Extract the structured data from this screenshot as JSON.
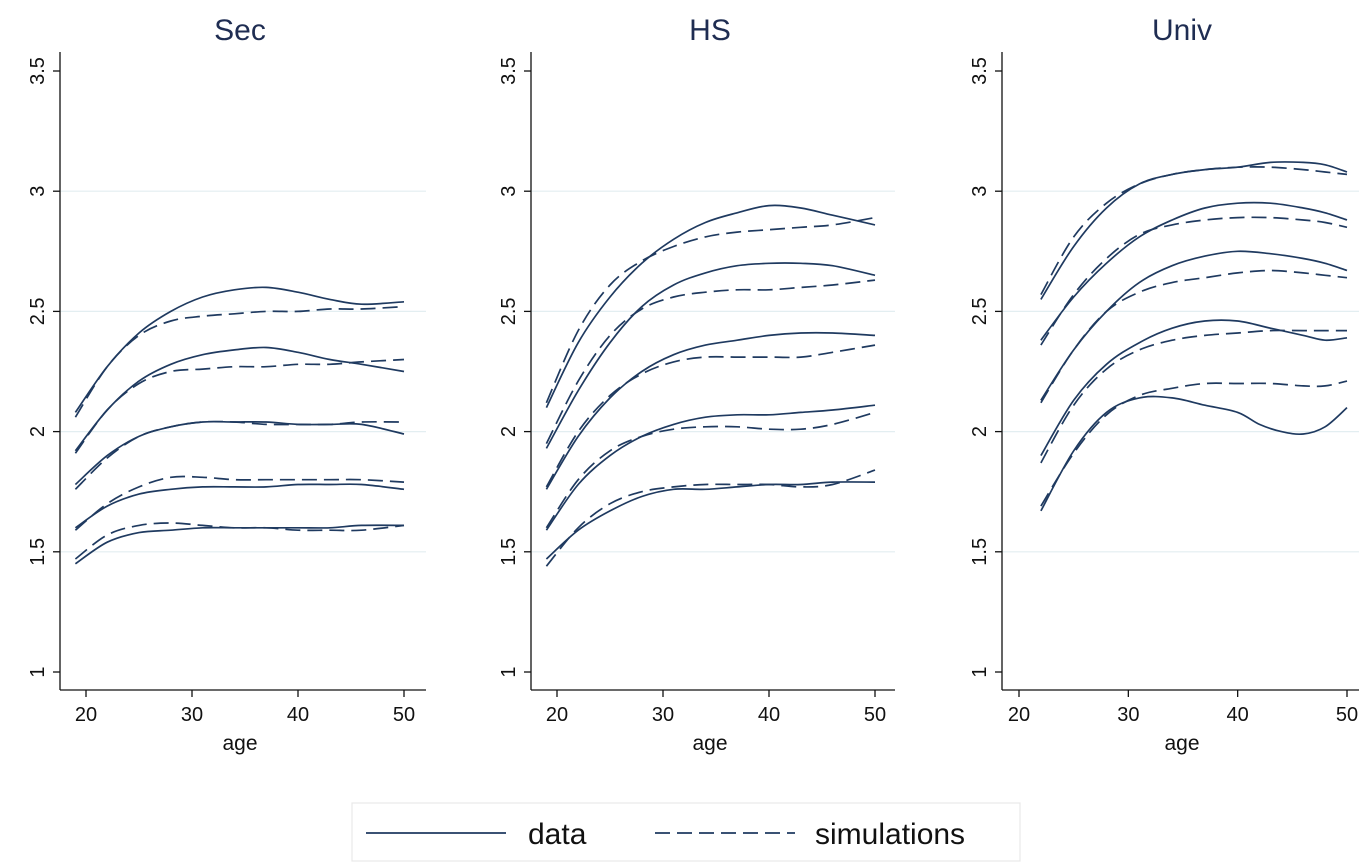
{
  "chart_data": [
    {
      "type": "line",
      "title": "Sec",
      "xlabel": "age",
      "ylabel": "",
      "xlim": [
        17,
        51
      ],
      "ylim": [
        1,
        3.5
      ],
      "xticks": [
        20,
        30,
        40,
        50
      ],
      "yticks": [
        1,
        1.5,
        2,
        2.5,
        3,
        3.5
      ],
      "xtick_labels": [
        "20",
        "30",
        "40",
        "50"
      ],
      "ytick_labels": [
        "1",
        "1.5",
        "2",
        "2.5",
        "3",
        "3.5"
      ],
      "grid": true,
      "series": [
        {
          "group": "data",
          "style": "solid",
          "x": [
            19,
            22,
            25,
            28,
            31,
            34,
            37,
            40,
            43,
            46,
            50
          ],
          "y": [
            2.08,
            2.27,
            2.41,
            2.5,
            2.56,
            2.59,
            2.6,
            2.58,
            2.55,
            2.53,
            2.54
          ]
        },
        {
          "group": "simulations",
          "style": "dashed",
          "x": [
            19,
            22,
            25,
            28,
            31,
            34,
            37,
            40,
            43,
            46,
            50
          ],
          "y": [
            2.06,
            2.27,
            2.4,
            2.46,
            2.48,
            2.49,
            2.5,
            2.5,
            2.51,
            2.51,
            2.52
          ]
        },
        {
          "group": "data",
          "style": "solid",
          "x": [
            19,
            22,
            25,
            28,
            31,
            34,
            37,
            40,
            43,
            46,
            50
          ],
          "y": [
            1.92,
            2.09,
            2.21,
            2.28,
            2.32,
            2.34,
            2.35,
            2.33,
            2.3,
            2.28,
            2.25
          ]
        },
        {
          "group": "simulations",
          "style": "dashed",
          "x": [
            19,
            22,
            25,
            28,
            31,
            34,
            37,
            40,
            43,
            46,
            50
          ],
          "y": [
            1.91,
            2.09,
            2.2,
            2.25,
            2.26,
            2.27,
            2.27,
            2.28,
            2.28,
            2.29,
            2.3
          ]
        },
        {
          "group": "data",
          "style": "solid",
          "x": [
            19,
            22,
            25,
            28,
            31,
            34,
            37,
            40,
            43,
            46,
            50
          ],
          "y": [
            1.78,
            1.9,
            1.98,
            2.02,
            2.04,
            2.04,
            2.04,
            2.03,
            2.03,
            2.03,
            1.99
          ]
        },
        {
          "group": "simulations",
          "style": "dashed",
          "x": [
            19,
            22,
            25,
            28,
            31,
            34,
            37,
            40,
            43,
            46,
            50
          ],
          "y": [
            1.76,
            1.89,
            1.98,
            2.02,
            2.04,
            2.04,
            2.03,
            2.03,
            2.03,
            2.04,
            2.04
          ]
        },
        {
          "group": "data",
          "style": "solid",
          "x": [
            19,
            22,
            25,
            28,
            31,
            34,
            37,
            40,
            43,
            46,
            50
          ],
          "y": [
            1.6,
            1.69,
            1.74,
            1.76,
            1.77,
            1.77,
            1.77,
            1.78,
            1.78,
            1.78,
            1.76
          ]
        },
        {
          "group": "simulations",
          "style": "dashed",
          "x": [
            19,
            22,
            25,
            28,
            31,
            34,
            37,
            40,
            43,
            46,
            50
          ],
          "y": [
            1.59,
            1.7,
            1.77,
            1.81,
            1.81,
            1.8,
            1.8,
            1.8,
            1.8,
            1.8,
            1.79
          ]
        },
        {
          "group": "data",
          "style": "solid",
          "x": [
            19,
            22,
            25,
            28,
            31,
            34,
            37,
            40,
            43,
            46,
            50
          ],
          "y": [
            1.45,
            1.54,
            1.58,
            1.59,
            1.6,
            1.6,
            1.6,
            1.6,
            1.6,
            1.61,
            1.61
          ]
        },
        {
          "group": "simulations",
          "style": "dashed",
          "x": [
            19,
            22,
            25,
            28,
            31,
            34,
            37,
            40,
            43,
            46,
            50
          ],
          "y": [
            1.47,
            1.57,
            1.61,
            1.62,
            1.61,
            1.6,
            1.6,
            1.59,
            1.59,
            1.59,
            1.61
          ]
        }
      ]
    },
    {
      "type": "line",
      "title": "HS",
      "xlabel": "age",
      "ylabel": "",
      "xlim": [
        17,
        51
      ],
      "ylim": [
        1,
        3.5
      ],
      "xticks": [
        20,
        30,
        40,
        50
      ],
      "yticks": [
        1,
        1.5,
        2,
        2.5,
        3,
        3.5
      ],
      "xtick_labels": [
        "20",
        "30",
        "40",
        "50"
      ],
      "ytick_labels": [
        "1",
        "1.5",
        "2",
        "2.5",
        "3",
        "3.5"
      ],
      "grid": true,
      "series": [
        {
          "group": "data",
          "style": "solid",
          "x": [
            19,
            22,
            25,
            28,
            31,
            34,
            37,
            40,
            43,
            46,
            50
          ],
          "y": [
            2.1,
            2.37,
            2.56,
            2.7,
            2.8,
            2.87,
            2.91,
            2.94,
            2.93,
            2.9,
            2.86
          ]
        },
        {
          "group": "simulations",
          "style": "dashed",
          "x": [
            19,
            22,
            25,
            28,
            31,
            34,
            37,
            40,
            43,
            46,
            50
          ],
          "y": [
            2.12,
            2.42,
            2.61,
            2.71,
            2.77,
            2.81,
            2.83,
            2.84,
            2.85,
            2.86,
            2.89
          ]
        },
        {
          "group": "data",
          "style": "solid",
          "x": [
            19,
            22,
            25,
            28,
            31,
            34,
            37,
            40,
            43,
            46,
            50
          ],
          "y": [
            1.93,
            2.17,
            2.37,
            2.52,
            2.61,
            2.66,
            2.69,
            2.7,
            2.7,
            2.69,
            2.65
          ]
        },
        {
          "group": "simulations",
          "style": "dashed",
          "x": [
            19,
            22,
            25,
            28,
            31,
            34,
            37,
            40,
            43,
            46,
            50
          ],
          "y": [
            1.95,
            2.21,
            2.4,
            2.51,
            2.56,
            2.58,
            2.59,
            2.59,
            2.6,
            2.61,
            2.63
          ]
        },
        {
          "group": "data",
          "style": "solid",
          "x": [
            19,
            22,
            25,
            28,
            31,
            34,
            37,
            40,
            43,
            46,
            50
          ],
          "y": [
            1.76,
            1.98,
            2.14,
            2.25,
            2.32,
            2.36,
            2.38,
            2.4,
            2.41,
            2.41,
            2.4
          ]
        },
        {
          "group": "simulations",
          "style": "dashed",
          "x": [
            19,
            22,
            25,
            28,
            31,
            34,
            37,
            40,
            43,
            46,
            50
          ],
          "y": [
            1.77,
            2.0,
            2.15,
            2.24,
            2.29,
            2.31,
            2.31,
            2.31,
            2.31,
            2.33,
            2.36
          ]
        },
        {
          "group": "data",
          "style": "solid",
          "x": [
            19,
            22,
            25,
            28,
            31,
            34,
            37,
            40,
            43,
            46,
            50
          ],
          "y": [
            1.59,
            1.78,
            1.9,
            1.98,
            2.03,
            2.06,
            2.07,
            2.07,
            2.08,
            2.09,
            2.11
          ]
        },
        {
          "group": "simulations",
          "style": "dashed",
          "x": [
            19,
            22,
            25,
            28,
            31,
            34,
            37,
            40,
            43,
            46,
            50
          ],
          "y": [
            1.6,
            1.8,
            1.92,
            1.98,
            2.01,
            2.02,
            2.02,
            2.01,
            2.01,
            2.03,
            2.08
          ]
        },
        {
          "group": "data",
          "style": "solid",
          "x": [
            19,
            22,
            25,
            28,
            31,
            34,
            37,
            40,
            43,
            46,
            50
          ],
          "y": [
            1.47,
            1.59,
            1.67,
            1.73,
            1.76,
            1.76,
            1.77,
            1.78,
            1.78,
            1.79,
            1.79
          ]
        },
        {
          "group": "simulations",
          "style": "dashed",
          "x": [
            19,
            22,
            25,
            28,
            31,
            34,
            37,
            40,
            43,
            46,
            50
          ],
          "y": [
            1.44,
            1.6,
            1.7,
            1.75,
            1.77,
            1.78,
            1.78,
            1.78,
            1.77,
            1.78,
            1.84
          ]
        }
      ]
    },
    {
      "type": "line",
      "title": "Univ",
      "xlabel": "age",
      "ylabel": "",
      "xlim": [
        18.5,
        50
      ],
      "ylim": [
        1,
        3.5
      ],
      "xticks": [
        20,
        30,
        40,
        50
      ],
      "yticks": [
        1,
        1.5,
        2,
        2.5,
        3,
        3.5
      ],
      "xtick_labels": [
        "20",
        "30",
        "40",
        "50"
      ],
      "ytick_labels": [
        "1",
        "1.5",
        "2",
        "2.5",
        "3",
        "3.5"
      ],
      "grid": true,
      "series": [
        {
          "group": "data",
          "style": "solid",
          "x": [
            22,
            25,
            28,
            31,
            34,
            37,
            40,
            43,
            46,
            48,
            50
          ],
          "y": [
            2.55,
            2.77,
            2.93,
            3.03,
            3.07,
            3.09,
            3.1,
            3.12,
            3.12,
            3.11,
            3.08
          ]
        },
        {
          "group": "simulations",
          "style": "dashed",
          "x": [
            22,
            25,
            28,
            31,
            34,
            37,
            40,
            43,
            46,
            48,
            50
          ],
          "y": [
            2.57,
            2.81,
            2.95,
            3.03,
            3.07,
            3.09,
            3.1,
            3.1,
            3.09,
            3.08,
            3.07
          ]
        },
        {
          "group": "data",
          "style": "solid",
          "x": [
            22,
            25,
            28,
            31,
            34,
            37,
            40,
            43,
            46,
            48,
            50
          ],
          "y": [
            2.38,
            2.56,
            2.7,
            2.81,
            2.88,
            2.93,
            2.95,
            2.95,
            2.93,
            2.91,
            2.88
          ]
        },
        {
          "group": "simulations",
          "style": "dashed",
          "x": [
            22,
            25,
            28,
            31,
            34,
            37,
            40,
            43,
            46,
            48,
            50
          ],
          "y": [
            2.36,
            2.57,
            2.72,
            2.82,
            2.86,
            2.88,
            2.89,
            2.89,
            2.88,
            2.87,
            2.85
          ]
        },
        {
          "group": "data",
          "style": "solid",
          "x": [
            22,
            25,
            28,
            31,
            34,
            37,
            40,
            43,
            46,
            48,
            50
          ],
          "y": [
            2.13,
            2.34,
            2.5,
            2.62,
            2.69,
            2.73,
            2.75,
            2.74,
            2.72,
            2.7,
            2.67
          ]
        },
        {
          "group": "simulations",
          "style": "dashed",
          "x": [
            22,
            25,
            28,
            31,
            34,
            37,
            40,
            43,
            46,
            48,
            50
          ],
          "y": [
            2.12,
            2.34,
            2.5,
            2.58,
            2.62,
            2.64,
            2.66,
            2.67,
            2.66,
            2.65,
            2.64
          ]
        },
        {
          "group": "data",
          "style": "solid",
          "x": [
            22,
            25,
            28,
            31,
            34,
            37,
            40,
            43,
            46,
            48,
            50
          ],
          "y": [
            1.9,
            2.13,
            2.28,
            2.37,
            2.43,
            2.46,
            2.46,
            2.43,
            2.4,
            2.38,
            2.39
          ]
        },
        {
          "group": "simulations",
          "style": "dashed",
          "x": [
            22,
            25,
            28,
            31,
            34,
            37,
            40,
            43,
            46,
            48,
            50
          ],
          "y": [
            1.87,
            2.11,
            2.26,
            2.34,
            2.38,
            2.4,
            2.41,
            2.42,
            2.42,
            2.42,
            2.42
          ]
        },
        {
          "group": "data",
          "style": "solid",
          "x": [
            22,
            25,
            28,
            31,
            34,
            37,
            40,
            42,
            44,
            46,
            48,
            50
          ],
          "y": [
            1.67,
            1.92,
            2.08,
            2.14,
            2.14,
            2.11,
            2.08,
            2.03,
            2.0,
            1.99,
            2.02,
            2.1
          ]
        },
        {
          "group": "simulations",
          "style": "dashed",
          "x": [
            22,
            25,
            28,
            31,
            34,
            37,
            40,
            43,
            46,
            48,
            50
          ],
          "y": [
            1.69,
            1.91,
            2.07,
            2.15,
            2.18,
            2.2,
            2.2,
            2.2,
            2.19,
            2.19,
            2.21
          ]
        }
      ]
    }
  ],
  "legend": {
    "items": [
      {
        "label": "data",
        "style": "solid"
      },
      {
        "label": "simulations",
        "style": "dashed"
      }
    ]
  },
  "colors": {
    "line": "#1f3a60",
    "title": "#1f2d52",
    "grid": "#e3eef1",
    "axis": "#111111",
    "legend_border": "#e8e8e8"
  }
}
